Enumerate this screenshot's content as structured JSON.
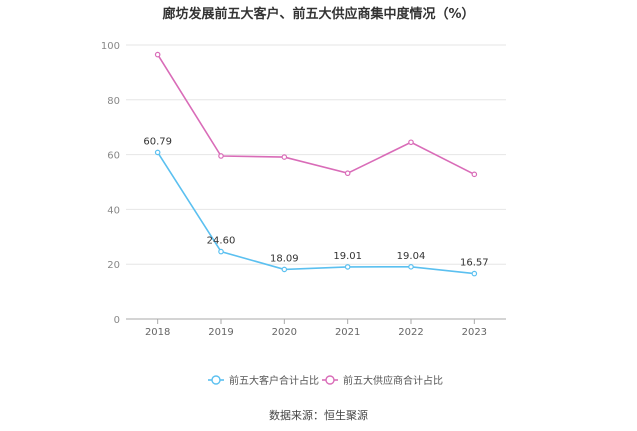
{
  "chart_data": {
    "type": "line",
    "title": "廊坊发展前五大客户、前五大供应商集中度情况（%）",
    "xlabel": "",
    "ylabel": "",
    "categories": [
      "2018",
      "2019",
      "2020",
      "2021",
      "2022",
      "2023"
    ],
    "y_ticks": [
      "0",
      "20",
      "40",
      "60",
      "80",
      "100"
    ],
    "ylim": [
      0,
      100
    ],
    "grid": true,
    "legend_position": "bottom",
    "series": [
      {
        "name": "前五大客户合计占比",
        "color": "#5bc0f0",
        "values": [
          60.79,
          24.6,
          18.09,
          19.01,
          19.04,
          16.57
        ],
        "data_labels": [
          "60.79",
          "24.60",
          "18.09",
          "19.01",
          "19.04",
          "16.57"
        ]
      },
      {
        "name": "前五大供应商合计占比",
        "color": "#d96cb8",
        "values": [
          96.5,
          59.5,
          59.1,
          53.2,
          64.5,
          52.8
        ],
        "data_labels": []
      }
    ]
  },
  "source": "数据来源：恒生聚源"
}
